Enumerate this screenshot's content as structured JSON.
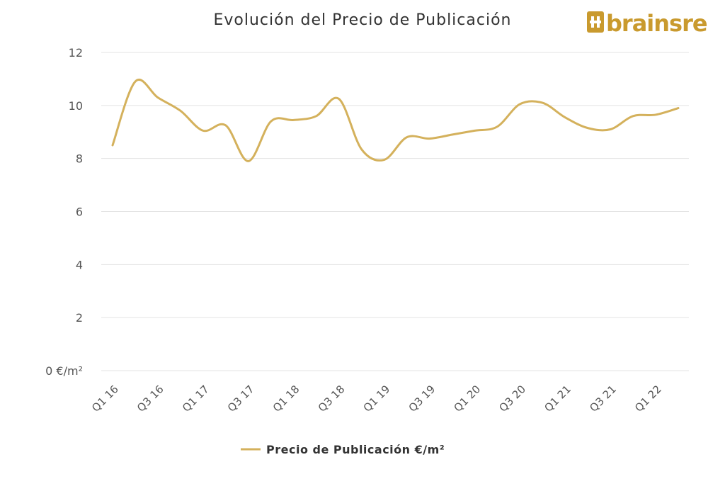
{
  "brand": {
    "name": "brainsre",
    "color": "#c99a2e"
  },
  "colors": {
    "series": "#d4b15c",
    "grid": "#e3e3e3",
    "text": "#555555"
  },
  "chart_data": {
    "type": "line",
    "title": "Evolución del Precio de Publicación",
    "xlabel": "",
    "ylabel": "",
    "ylim": [
      0,
      12
    ],
    "y_ticks": [
      {
        "value": 0,
        "label": "0 €/m²"
      },
      {
        "value": 2,
        "label": "2"
      },
      {
        "value": 4,
        "label": "4"
      },
      {
        "value": 6,
        "label": "6"
      },
      {
        "value": 8,
        "label": "8"
      },
      {
        "value": 10,
        "label": "10"
      },
      {
        "value": 12,
        "label": "12"
      }
    ],
    "categories": [
      "Q1 16",
      "Q2 16",
      "Q3 16",
      "Q4 16",
      "Q1 17",
      "Q2 17",
      "Q3 17",
      "Q4 17",
      "Q1 18",
      "Q2 18",
      "Q3 18",
      "Q4 18",
      "Q1 19",
      "Q2 19",
      "Q3 19",
      "Q4 19",
      "Q1 20",
      "Q2 20",
      "Q3 20",
      "Q4 20",
      "Q1 21",
      "Q2 21",
      "Q3 21",
      "Q4 21",
      "Q1 22",
      "Q2 22"
    ],
    "x_tick_labels": [
      "Q1 16",
      "Q3 16",
      "Q1 17",
      "Q3 17",
      "Q1 18",
      "Q3 18",
      "Q1 19",
      "Q3 19",
      "Q1 20",
      "Q3 20",
      "Q1 21",
      "Q3 21",
      "Q1 22"
    ],
    "legend_position": "bottom",
    "grid": true,
    "series": [
      {
        "name": "Precio de Publicación €/m²",
        "values": [
          8.5,
          10.9,
          10.3,
          9.8,
          9.05,
          9.25,
          7.9,
          9.4,
          9.45,
          9.6,
          10.25,
          8.35,
          7.95,
          8.8,
          8.75,
          8.9,
          9.05,
          9.2,
          10.05,
          10.1,
          9.55,
          9.15,
          9.1,
          9.6,
          9.65,
          9.9
        ]
      }
    ]
  }
}
